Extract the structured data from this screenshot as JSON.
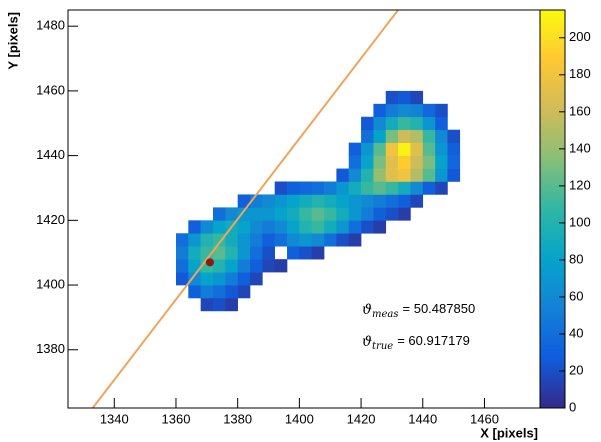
{
  "chart_data": {
    "type": "heatmap2d",
    "xlabel": "X [pixels]",
    "ylabel": "Y [pixels]",
    "xlim": [
      1325,
      1478
    ],
    "ylim": [
      1362,
      1485
    ],
    "xticks": [
      1340,
      1360,
      1380,
      1400,
      1420,
      1440,
      1460
    ],
    "yticks": [
      1380,
      1400,
      1420,
      1440,
      1460,
      1480
    ],
    "zlim": [
      0,
      215
    ],
    "zticks": [
      0,
      20,
      40,
      60,
      80,
      100,
      120,
      140,
      160,
      180,
      200
    ],
    "xbins": [
      1360,
      1364,
      1368,
      1372,
      1376,
      1380,
      1384,
      1388,
      1392,
      1396,
      1400,
      1404,
      1408,
      1412,
      1416,
      1420,
      1424,
      1428,
      1432,
      1436,
      1440,
      1444,
      1448,
      1452
    ],
    "ybins": [
      1392,
      1396,
      1400,
      1404,
      1408,
      1412,
      1416,
      1420,
      1424,
      1428,
      1432,
      1436,
      1440,
      1444,
      1448,
      1452,
      1456,
      1460
    ],
    "z": [
      [
        null,
        null,
        15,
        20,
        10,
        null,
        null,
        null,
        null,
        null,
        null,
        null,
        null,
        null,
        null,
        null,
        null,
        null,
        null,
        null,
        null,
        null,
        null
      ],
      [
        null,
        30,
        50,
        40,
        25,
        15,
        null,
        null,
        null,
        null,
        null,
        null,
        null,
        null,
        null,
        null,
        null,
        null,
        null,
        null,
        null,
        null,
        null
      ],
      [
        25,
        60,
        80,
        70,
        50,
        30,
        15,
        null,
        null,
        null,
        null,
        null,
        null,
        null,
        null,
        null,
        null,
        null,
        null,
        null,
        null,
        null,
        null
      ],
      [
        40,
        80,
        110,
        100,
        80,
        50,
        30,
        15,
        10,
        null,
        null,
        null,
        null,
        null,
        null,
        null,
        null,
        null,
        null,
        null,
        null,
        null,
        null
      ],
      [
        50,
        90,
        110,
        120,
        100,
        70,
        40,
        20,
        null,
        30,
        20,
        10,
        null,
        null,
        null,
        null,
        null,
        null,
        null,
        null,
        null,
        null,
        null
      ],
      [
        40,
        70,
        100,
        110,
        90,
        70,
        50,
        30,
        40,
        60,
        70,
        60,
        40,
        20,
        10,
        null,
        null,
        null,
        null,
        null,
        null,
        null,
        null
      ],
      [
        null,
        30,
        60,
        80,
        90,
        80,
        60,
        50,
        60,
        80,
        100,
        110,
        90,
        70,
        40,
        20,
        10,
        null,
        null,
        null,
        null,
        null,
        null
      ],
      [
        null,
        null,
        null,
        40,
        60,
        70,
        70,
        70,
        80,
        90,
        110,
        120,
        110,
        90,
        70,
        50,
        30,
        20,
        10,
        null,
        null,
        null,
        null
      ],
      [
        null,
        null,
        null,
        null,
        null,
        30,
        50,
        60,
        70,
        80,
        90,
        100,
        90,
        80,
        70,
        60,
        50,
        40,
        30,
        15,
        null,
        null,
        null
      ],
      [
        null,
        null,
        null,
        null,
        null,
        null,
        null,
        null,
        20,
        30,
        35,
        40,
        50,
        70,
        90,
        110,
        120,
        110,
        90,
        60,
        30,
        15,
        null
      ],
      [
        null,
        null,
        null,
        null,
        null,
        null,
        null,
        null,
        null,
        null,
        null,
        null,
        null,
        25,
        60,
        100,
        140,
        170,
        180,
        150,
        120,
        70,
        25
      ],
      [
        null,
        null,
        null,
        null,
        null,
        null,
        null,
        null,
        null,
        null,
        null,
        null,
        null,
        null,
        40,
        80,
        130,
        170,
        190,
        160,
        130,
        80,
        35
      ],
      [
        null,
        null,
        null,
        null,
        null,
        null,
        null,
        null,
        null,
        null,
        null,
        null,
        null,
        null,
        30,
        70,
        120,
        180,
        210,
        170,
        120,
        70,
        30
      ],
      [
        null,
        null,
        null,
        null,
        null,
        null,
        null,
        null,
        null,
        null,
        null,
        null,
        null,
        null,
        null,
        40,
        80,
        130,
        160,
        150,
        110,
        60,
        20
      ],
      [
        null,
        null,
        null,
        null,
        null,
        null,
        null,
        null,
        null,
        null,
        null,
        null,
        null,
        null,
        null,
        25,
        60,
        90,
        110,
        100,
        70,
        30,
        null
      ],
      [
        null,
        null,
        null,
        null,
        null,
        null,
        null,
        null,
        null,
        null,
        null,
        null,
        null,
        null,
        null,
        null,
        30,
        50,
        60,
        55,
        35,
        20,
        null
      ],
      [
        null,
        null,
        null,
        null,
        null,
        null,
        null,
        null,
        null,
        null,
        null,
        null,
        null,
        null,
        null,
        null,
        null,
        20,
        25,
        15,
        null,
        null,
        null
      ]
    ],
    "line": {
      "color": "#f0a45a",
      "x": [
        1333,
        1432
      ],
      "y": [
        1362,
        1485
      ]
    },
    "point": {
      "color": "#8b1a10",
      "x": 1371,
      "y": 1407
    },
    "annotations": [
      {
        "symbol": "ϑ",
        "sub": "meas",
        "text": "= 50.487850"
      },
      {
        "symbol": "ϑ",
        "sub": "true",
        "text": "= 60.917179"
      }
    ]
  }
}
